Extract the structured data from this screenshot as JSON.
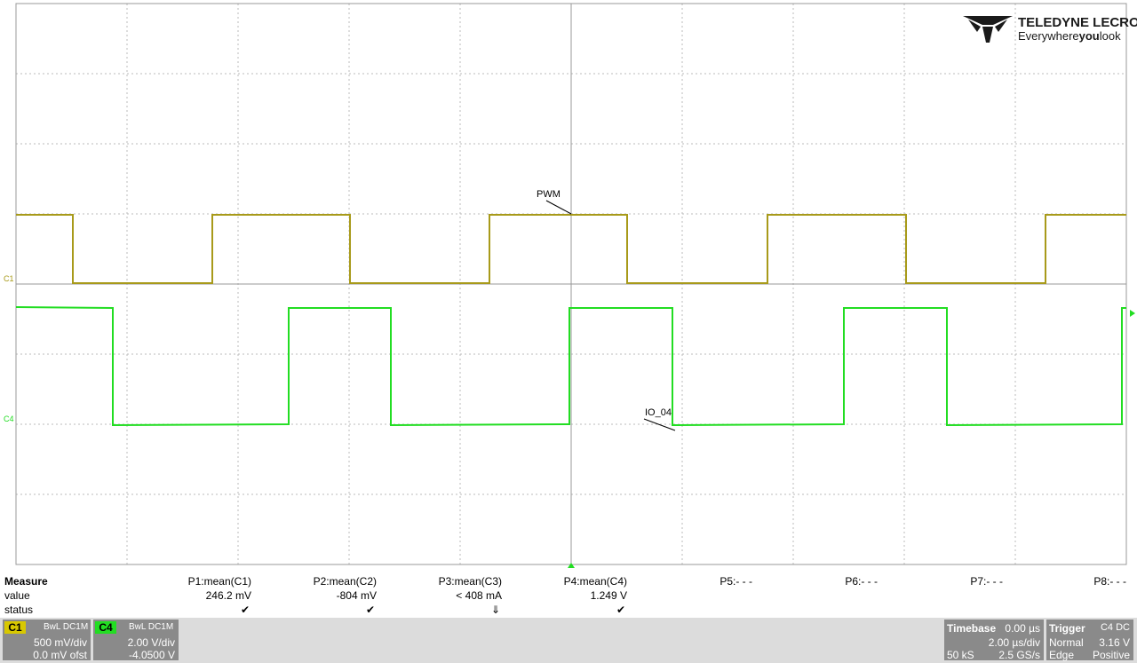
{
  "logo": {
    "brand": "TELEDYNE LECROY",
    "tagline_a": "Everywhere",
    "tagline_b": "you",
    "tagline_c": "look"
  },
  "trace_labels": {
    "pwm": "PWM",
    "io": "IO_04",
    "c1": "C1",
    "c4": "C4"
  },
  "measure": {
    "title": "Measure",
    "row_labels": [
      "value",
      "status"
    ],
    "params": [
      {
        "name": "P1:mean(C1)",
        "value": "246.2 mV",
        "status": "✔"
      },
      {
        "name": "P2:mean(C2)",
        "value": "-804 mV",
        "status": "✔"
      },
      {
        "name": "P3:mean(C3)",
        "value": "< 408 mA",
        "status": "⇓"
      },
      {
        "name": "P4:mean(C4)",
        "value": "1.249 V",
        "status": "✔"
      },
      {
        "name": "P5:- - -"
      },
      {
        "name": "P6:- - -"
      },
      {
        "name": "P7:- - -"
      },
      {
        "name": "P8:- - -"
      }
    ]
  },
  "channels": [
    {
      "id": "C1",
      "coupling": "BwL DC1M",
      "scale": "500 mV/div",
      "offset": "0.0 mV ofst"
    },
    {
      "id": "C4",
      "coupling": "BwL DC1M",
      "scale": "2.00 V/div",
      "offset": "-4.0500 V"
    }
  ],
  "timebase": {
    "title": "Timebase",
    "delay": "0.00 µs",
    "scale": "2.00 µs/div",
    "samples": "50 kS",
    "rate": "2.5 GS/s"
  },
  "trigger": {
    "title": "Trigger",
    "source": "C4 DC",
    "mode": "Normal",
    "level": "3.16 V",
    "type": "Edge",
    "slope": "Positive"
  }
}
